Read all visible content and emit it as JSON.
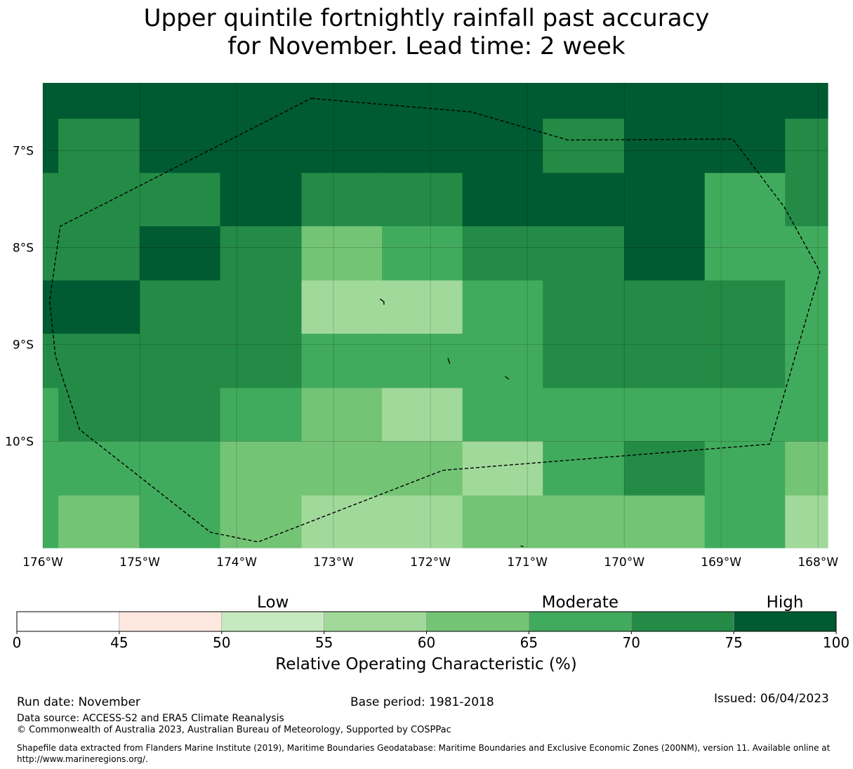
{
  "title": {
    "line1": "Upper quintile fortnightly rainfall past accuracy",
    "line2": "for November. Lead time: 2 week"
  },
  "map": {
    "lon_min": -176,
    "lon_max": -167.9,
    "lat_top": -6.3,
    "lat_bottom": -11.1,
    "lon_ticks": [
      {
        "lon": -176,
        "label": "176°W"
      },
      {
        "lon": -175,
        "label": "175°W"
      },
      {
        "lon": -174,
        "label": "174°W"
      },
      {
        "lon": -173,
        "label": "173°W"
      },
      {
        "lon": -172,
        "label": "172°W"
      },
      {
        "lon": -171,
        "label": "171°W"
      },
      {
        "lon": -170,
        "label": "170°W"
      },
      {
        "lon": -169,
        "label": "169°W"
      },
      {
        "lon": -168,
        "label": "168°W"
      }
    ],
    "lat_ticks": [
      {
        "lat": -7,
        "label": "7°S"
      },
      {
        "lat": -8,
        "label": "8°S"
      },
      {
        "lat": -9,
        "label": "9°S"
      },
      {
        "lat": -10,
        "label": "10°S"
      }
    ],
    "col_edges_lon": [
      -176.0,
      -175.84,
      -175.0,
      -174.17,
      -173.33,
      -172.5,
      -171.67,
      -170.84,
      -170.0,
      -169.17,
      -168.34,
      -167.9
    ],
    "row_edges_lat": [
      -6.3,
      -6.67,
      -7.23,
      -7.78,
      -8.34,
      -8.89,
      -9.45,
      -10.0,
      -10.56,
      -11.1
    ],
    "grid_values": [
      [
        80,
        80,
        80,
        80,
        80,
        80,
        80,
        80,
        80,
        80,
        80
      ],
      [
        80,
        72,
        80,
        80,
        80,
        80,
        80,
        72,
        80,
        80,
        72
      ],
      [
        72,
        72,
        72,
        80,
        72,
        72,
        80,
        80,
        80,
        67,
        72
      ],
      [
        72,
        72,
        80,
        72,
        62,
        67,
        72,
        72,
        80,
        67,
        67
      ],
      [
        80,
        80,
        72,
        72,
        57,
        57,
        67,
        72,
        72,
        72,
        67
      ],
      [
        72,
        72,
        72,
        72,
        67,
        67,
        67,
        72,
        72,
        72,
        67
      ],
      [
        67,
        72,
        72,
        67,
        62,
        57,
        67,
        67,
        67,
        67,
        67
      ],
      [
        67,
        67,
        67,
        62,
        62,
        62,
        57,
        67,
        72,
        67,
        62
      ],
      [
        67,
        62,
        67,
        62,
        57,
        57,
        62,
        62,
        62,
        67,
        57
      ]
    ],
    "eez_boundary": [
      [
        -173.23,
        -6.46
      ],
      [
        -171.58,
        -6.6
      ],
      [
        -170.58,
        -6.89
      ],
      [
        -168.88,
        -6.88
      ],
      [
        -168.35,
        -7.58
      ],
      [
        -167.98,
        -8.25
      ],
      [
        -168.5,
        -10.03
      ],
      [
        -171.87,
        -10.3
      ],
      [
        -173.78,
        -11.04
      ],
      [
        -174.27,
        -10.94
      ],
      [
        -175.62,
        -9.88
      ],
      [
        -175.87,
        -9.12
      ],
      [
        -175.93,
        -8.55
      ],
      [
        -175.82,
        -7.78
      ],
      [
        -173.23,
        -6.46
      ]
    ],
    "islands": [
      [
        [
          -172.52,
          -8.53
        ],
        [
          -172.48,
          -8.56
        ],
        [
          -172.48,
          -8.59
        ]
      ],
      [
        [
          -171.82,
          -9.14
        ],
        [
          -171.8,
          -9.2
        ]
      ],
      [
        [
          -171.23,
          -9.33
        ],
        [
          -171.19,
          -9.36
        ]
      ],
      [
        [
          -171.07,
          -11.08
        ],
        [
          -171.04,
          -11.09
        ]
      ]
    ]
  },
  "colorbar": {
    "boundaries": [
      0,
      45,
      50,
      55,
      60,
      65,
      70,
      75,
      100
    ],
    "colors": [
      "#ffffff",
      "#fee8df",
      "#c7e9c0",
      "#a1d99b",
      "#74c476",
      "#41ab5d",
      "#238b45",
      "#005a32"
    ],
    "tick_labels": [
      "0",
      "45",
      "50",
      "55",
      "60",
      "65",
      "70",
      "75",
      "100"
    ],
    "category_labels": [
      {
        "label": "Low",
        "at": 52.5
      },
      {
        "label": "Moderate",
        "at": 67.5
      },
      {
        "label": "High",
        "at": 87.5
      }
    ],
    "axis_label": "Relative Operating Characteristic (%)"
  },
  "footer": {
    "run_date": "Run date: November",
    "base_period": "Base period: 1981-2018",
    "issued": "Issued: 06/04/2023",
    "data_source": "Data source: ACCESS-S2 and ERA5 Climate Reanalysis",
    "copyright": "© Commonwealth of Australia 2023, Australian Bureau of Meteorology, Supported by COSPPac",
    "shapefile_note": "Shapefile data extracted from Flanders Marine Institute (2019), Maritime Boundaries Geodatabase: Maritime Boundaries and Exclusive Economic Zones (200NM), version 11. Available online at http://www.marineregions.org/."
  }
}
